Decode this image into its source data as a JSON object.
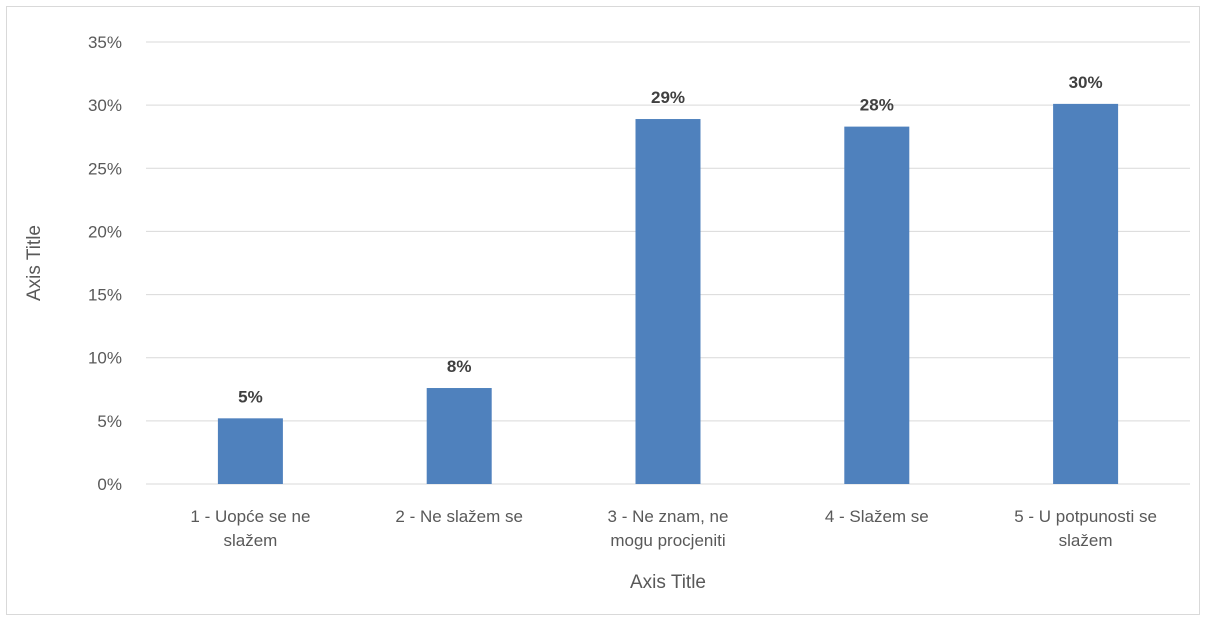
{
  "chart_data": {
    "type": "bar",
    "categories": [
      [
        "1 - Uopće se ne",
        "slažem"
      ],
      [
        "2 - Ne slažem se"
      ],
      [
        "3 - Ne znam, ne",
        "mogu procjeniti"
      ],
      [
        "4 - Slažem se"
      ],
      [
        "5 - U potpunosti se",
        "slažem"
      ]
    ],
    "values": [
      5.2,
      7.6,
      28.9,
      28.3,
      30.1
    ],
    "data_labels": [
      "5%",
      "8%",
      "29%",
      "28%",
      "30%"
    ],
    "y_ticks": [
      "0%",
      "5%",
      "10%",
      "15%",
      "20%",
      "25%",
      "30%",
      "35%"
    ],
    "ylim": [
      0,
      35
    ],
    "xlabel": "Axis Title",
    "ylabel": "Axis Title",
    "grid": true,
    "bar_color": "#4f81bd",
    "grid_color": "#d9d9d9"
  }
}
